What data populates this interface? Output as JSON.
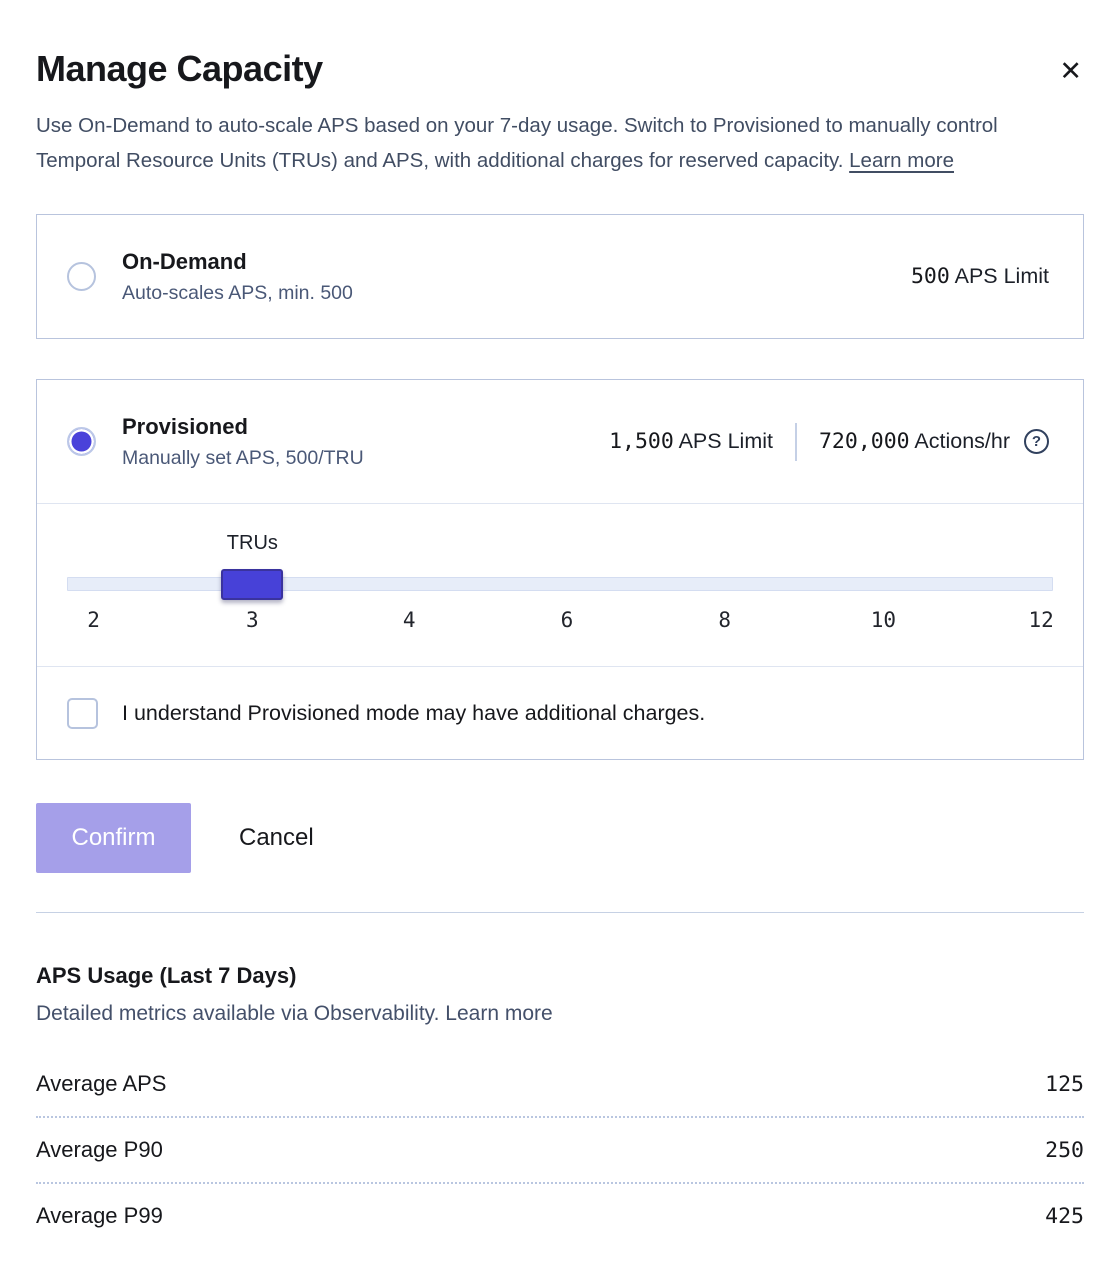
{
  "modal": {
    "title": "Manage Capacity",
    "close_glyph": "✕",
    "description": "Use On-Demand to auto-scale APS based on your 7-day usage. Switch to Provisioned to manually control Temporal Resource Units (TRUs) and APS, with additional charges for reserved capacity.",
    "learn_more_label": "Learn more"
  },
  "options": {
    "on_demand": {
      "label": "On-Demand",
      "sublabel": "Auto-scales APS, min. 500",
      "selected": false,
      "aps_value": "500",
      "aps_unit": "APS Limit"
    },
    "provisioned": {
      "label": "Provisioned",
      "sublabel": "Manually set APS, 500/TRU",
      "selected": true,
      "aps_value": "1,500",
      "aps_unit": "APS Limit",
      "actions_value": "720,000",
      "actions_unit": "Actions/hr",
      "help_glyph": "?"
    }
  },
  "slider": {
    "label": "TRUs",
    "value": 3,
    "ticks": [
      "2",
      "3",
      "4",
      "6",
      "8",
      "10",
      "12"
    ]
  },
  "checkbox": {
    "label": "I understand Provisioned mode may have additional charges.",
    "checked": false
  },
  "actions": {
    "confirm_label": "Confirm",
    "cancel_label": "Cancel"
  },
  "usage": {
    "title": "APS Usage (Last 7 Days)",
    "subtitle": "Detailed metrics available via Observability.",
    "learn_more_label": "Learn more",
    "rows": [
      {
        "label": "Average APS",
        "value": "125"
      },
      {
        "label": "Average P90",
        "value": "250"
      },
      {
        "label": "Average P99",
        "value": "425"
      }
    ]
  },
  "colors": {
    "accent_indigo": "#4741d8",
    "radio_selected": "#4a42da",
    "confirm_disabled": "#a59fe9",
    "card_border": "#b9c4dd",
    "slate_text": "#414d63",
    "track_fill": "#e7edf9"
  }
}
